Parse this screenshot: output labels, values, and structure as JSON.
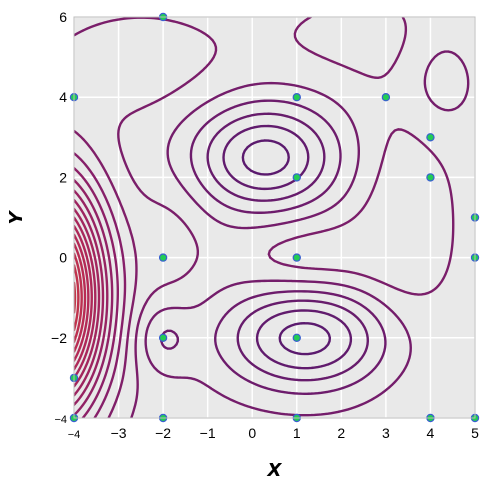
{
  "chart_data": {
    "type": "contour",
    "title": "",
    "xlabel": "X",
    "ylabel": "Y",
    "xlim": [
      -4,
      5
    ],
    "ylim": [
      -4,
      6
    ],
    "xticks": [
      "−4",
      "−3",
      "−2",
      "−1",
      "0",
      "1",
      "2",
      "3",
      "4",
      "5"
    ],
    "yticks": [
      "−4",
      "−2",
      "0",
      "2",
      "4",
      "6"
    ],
    "grid": true,
    "background": "#e9e9e9",
    "colormap": [
      "#5b1a6e",
      "#8a2068",
      "#b52a55",
      "#d4443c"
    ],
    "points": [
      {
        "x": -2,
        "y": 6
      },
      {
        "x": -4,
        "y": 4
      },
      {
        "x": 1,
        "y": 4
      },
      {
        "x": 3,
        "y": 4
      },
      {
        "x": 4,
        "y": 3
      },
      {
        "x": 1,
        "y": 2
      },
      {
        "x": 4,
        "y": 2
      },
      {
        "x": 5,
        "y": 1
      },
      {
        "x": -2,
        "y": 0
      },
      {
        "x": 1,
        "y": 0
      },
      {
        "x": 5,
        "y": 0
      },
      {
        "x": -2,
        "y": -2
      },
      {
        "x": 1,
        "y": -2
      },
      {
        "x": -4,
        "y": -3
      },
      {
        "x": -4,
        "y": -4
      },
      {
        "x": -2,
        "y": -4
      },
      {
        "x": 1,
        "y": -4
      },
      {
        "x": 4,
        "y": -4
      },
      {
        "x": 5,
        "y": -4
      }
    ],
    "point_fill": "#22cc55",
    "point_edge": "#3a5fd0"
  }
}
